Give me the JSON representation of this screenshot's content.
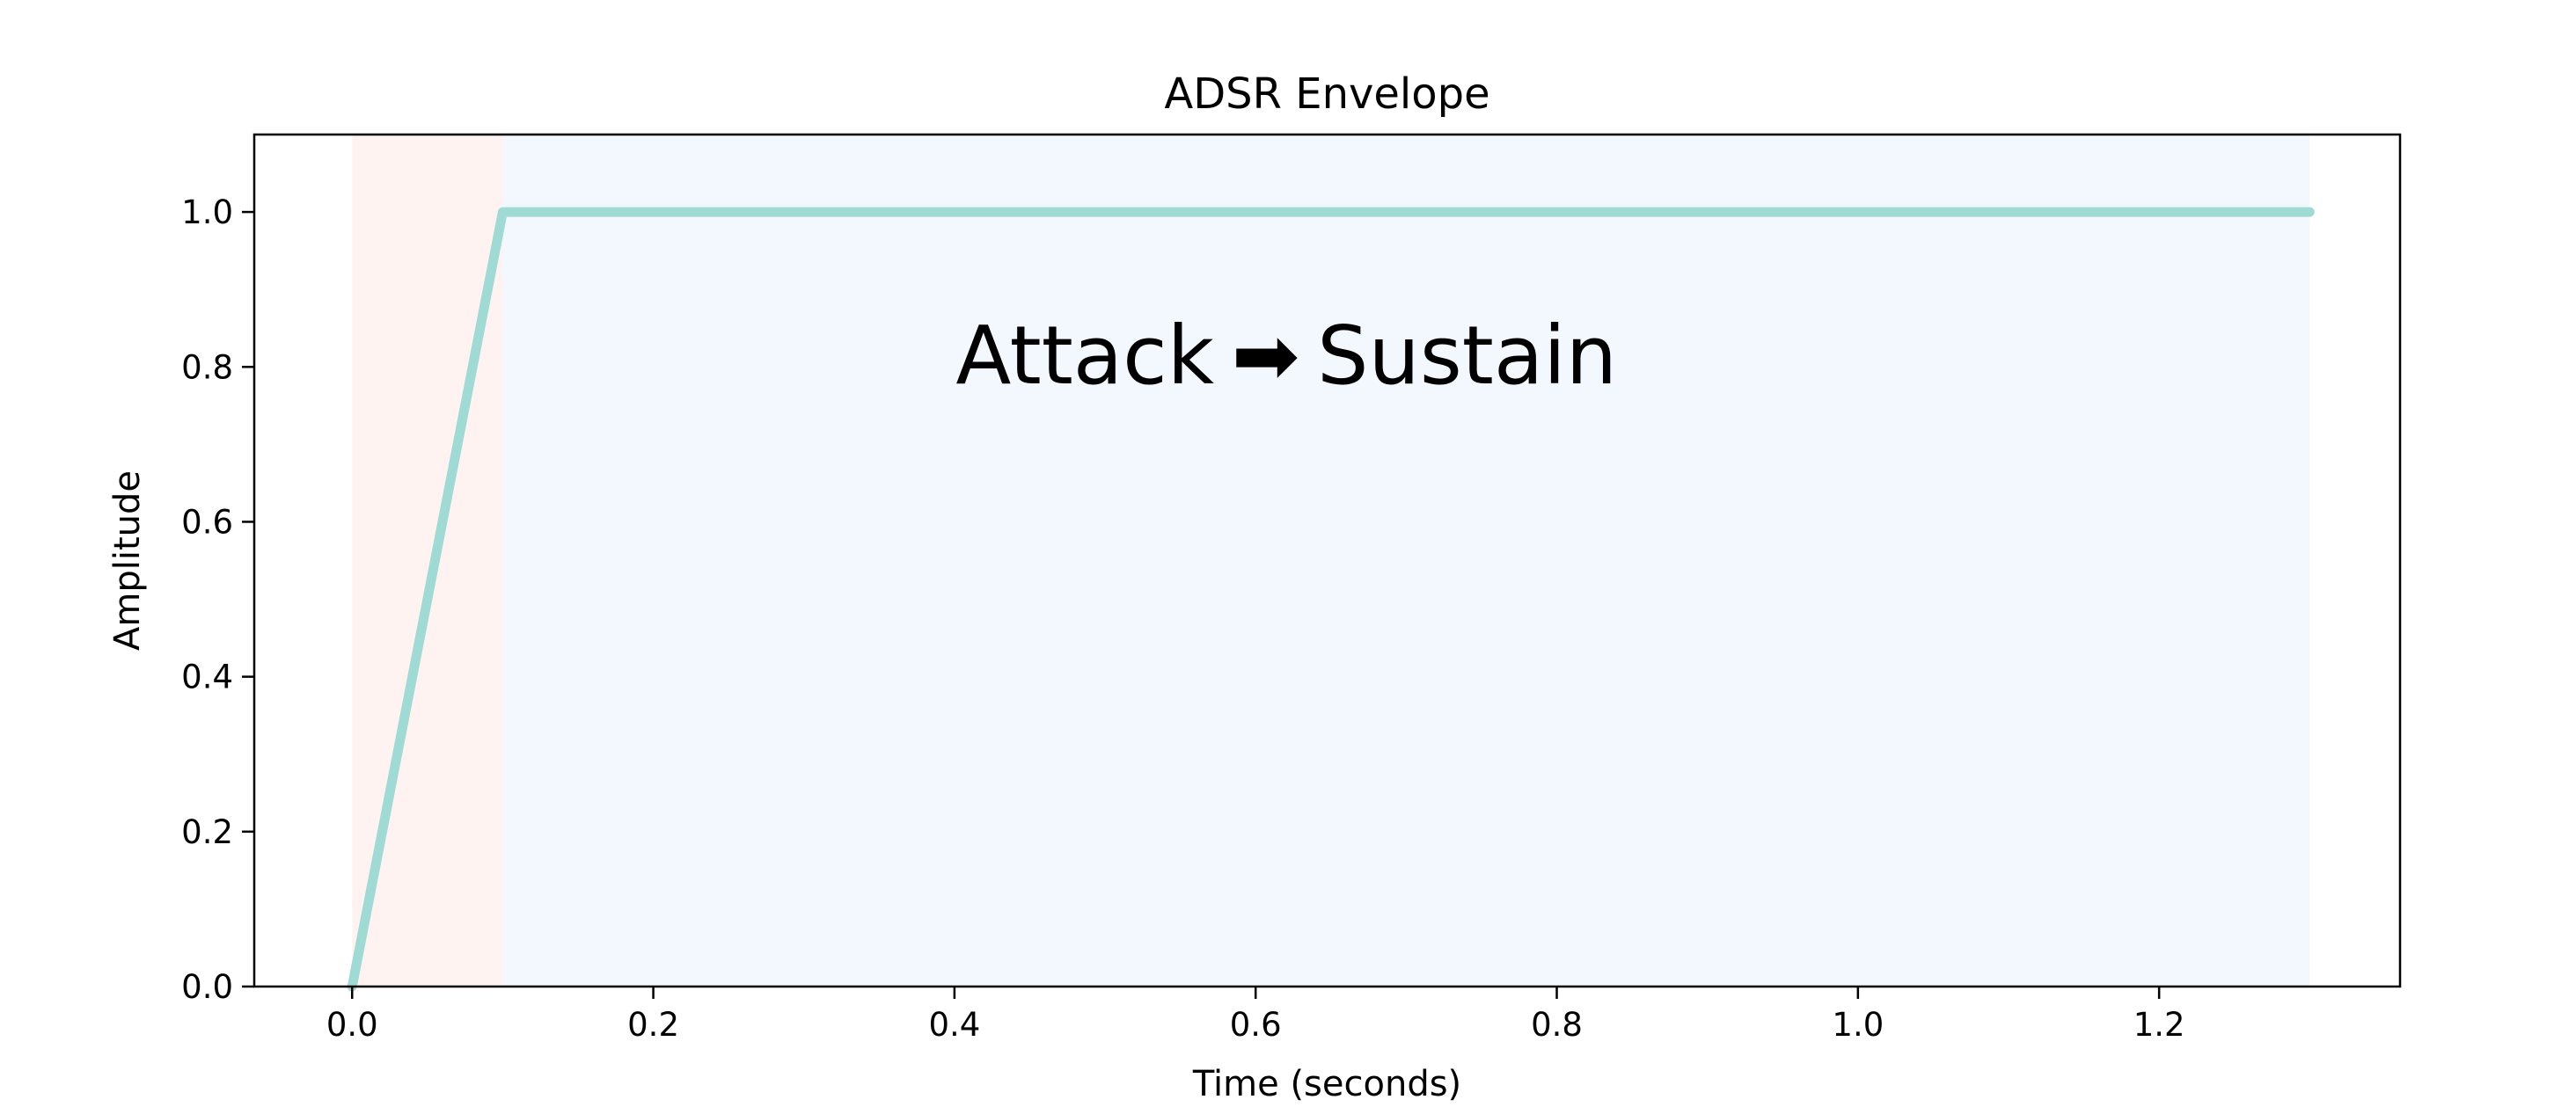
{
  "chart_data": {
    "type": "line",
    "title": "ADSR Envelope",
    "xlabel": "Time (seconds)",
    "ylabel": "Amplitude",
    "xlim": [
      -0.065,
      1.36
    ],
    "ylim": [
      0.0,
      1.1
    ],
    "xticks": [
      0.0,
      0.2,
      0.4,
      0.6,
      0.8,
      1.0,
      1.2
    ],
    "xtick_labels": [
      "0.0",
      "0.2",
      "0.4",
      "0.6",
      "0.8",
      "1.0",
      "1.2"
    ],
    "yticks": [
      0.0,
      0.2,
      0.4,
      0.6,
      0.8,
      1.0
    ],
    "ytick_labels": [
      "0.0",
      "0.2",
      "0.4",
      "0.6",
      "0.8",
      "1.0"
    ],
    "grid": false,
    "series": [
      {
        "x": [
          0.0,
          0.1,
          1.3
        ],
        "y": [
          0.0,
          1.0,
          1.0
        ],
        "color": "#9fdbd4"
      }
    ],
    "regions": [
      {
        "label": "Attack",
        "x_start": 0.0,
        "x_end": 0.1,
        "color": "#fff3f2"
      },
      {
        "label": "Sustain",
        "x_start": 0.1,
        "x_end": 1.3,
        "color": "#f3f8ff"
      }
    ],
    "annotation": {
      "text_start": "Attack",
      "arrow": "➡",
      "text_end": "Sustain",
      "x": 0.6,
      "y": 0.815
    }
  }
}
